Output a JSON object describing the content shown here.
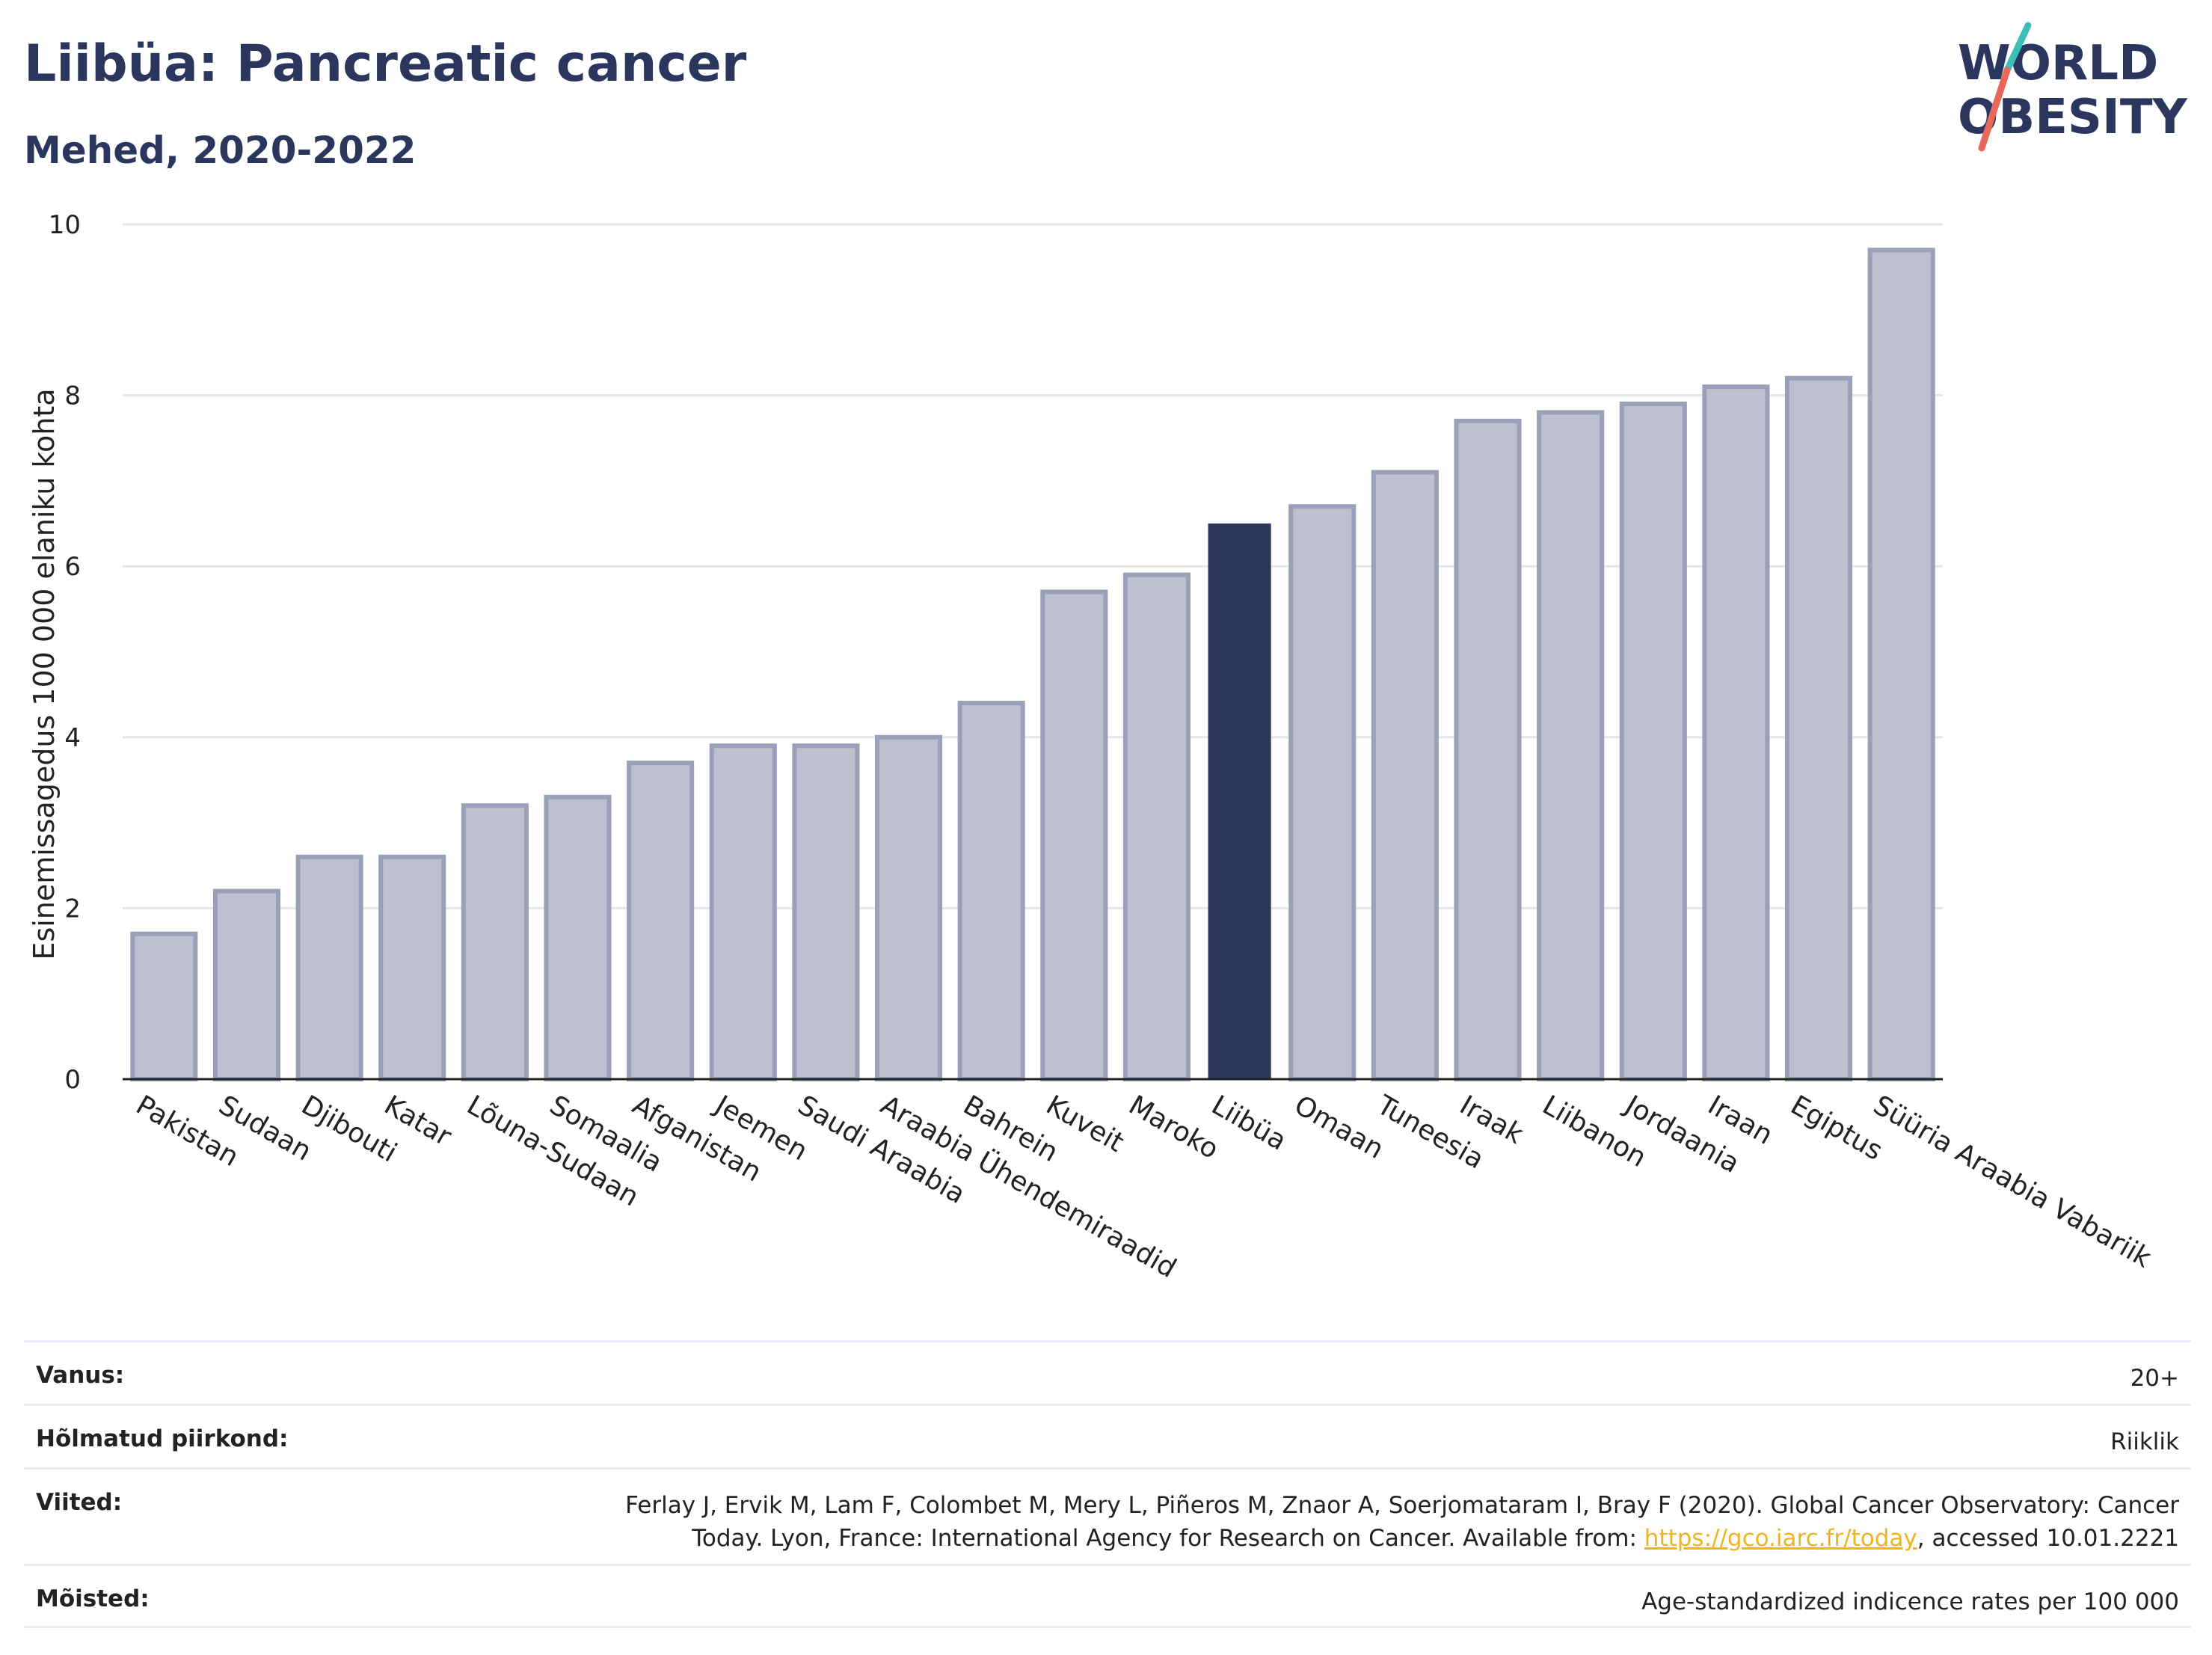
{
  "title": "Liibüa: Pancreatic cancer",
  "subtitle": "Mehed, 2020-2022",
  "logo": {
    "line1": "WORLD",
    "line2": "OBESITY",
    "colors": {
      "text": "#2b365e",
      "slash_top": "#3dbfb8",
      "slash_bottom": "#e8685a"
    }
  },
  "colors": {
    "bar": "#bcc0cf",
    "bar_border": "#9aa0b8",
    "highlight": "#2b365e",
    "grid": "#e4e6ec",
    "axis": "#222222",
    "link": "#f0b323"
  },
  "chart_data": {
    "type": "bar",
    "ylabel": "Esinemissagedus 100 000 elaniku kohta",
    "xlabel": "",
    "ylim": [
      0,
      10
    ],
    "yticks": [
      0,
      2,
      4,
      6,
      8,
      10
    ],
    "grid": true,
    "highlight": "Liibüa",
    "categories": [
      "Pakistan",
      "Sudaan",
      "Djibouti",
      "Katar",
      "Lõuna-Sudaan",
      "Somaalia",
      "Afganistan",
      "Jeemen",
      "Saudi Araabia",
      "Araabia Ühendemiraadid",
      "Bahrein",
      "Kuveit",
      "Maroko",
      "Liibüa",
      "Omaan",
      "Tuneesia",
      "Iraak",
      "Liibanon",
      "Jordaania",
      "Iraan",
      "Egiptus",
      "Süüria Araabia Vabariik"
    ],
    "values": [
      1.7,
      2.2,
      2.6,
      2.6,
      3.2,
      3.3,
      3.7,
      3.9,
      3.9,
      4.0,
      4.4,
      5.7,
      5.9,
      6.5,
      6.7,
      7.1,
      7.7,
      7.8,
      7.9,
      8.1,
      8.2,
      9.7
    ]
  },
  "meta": {
    "age_label": "Vanus:",
    "age_value": "20+",
    "area_label": "Hõlmatud piirkond:",
    "area_value": "Riiklik",
    "ref_label": "Viited:",
    "ref_line1": "Ferlay J, Ervik M, Lam F, Colombet M, Mery L, Piñeros M, Znaor A, Soerjomataram I, Bray F (2020). Global Cancer Observatory: Cancer",
    "ref_line2_pre": "Today. Lyon, France: International Agency for Research on Cancer. Available from: ",
    "ref_link": "https://gco.iarc.fr/today",
    "ref_line2_post": ", accessed 10.01.2221",
    "def_label": "Mõisted:",
    "def_value": "Age-standardized indicence rates per 100 000"
  }
}
